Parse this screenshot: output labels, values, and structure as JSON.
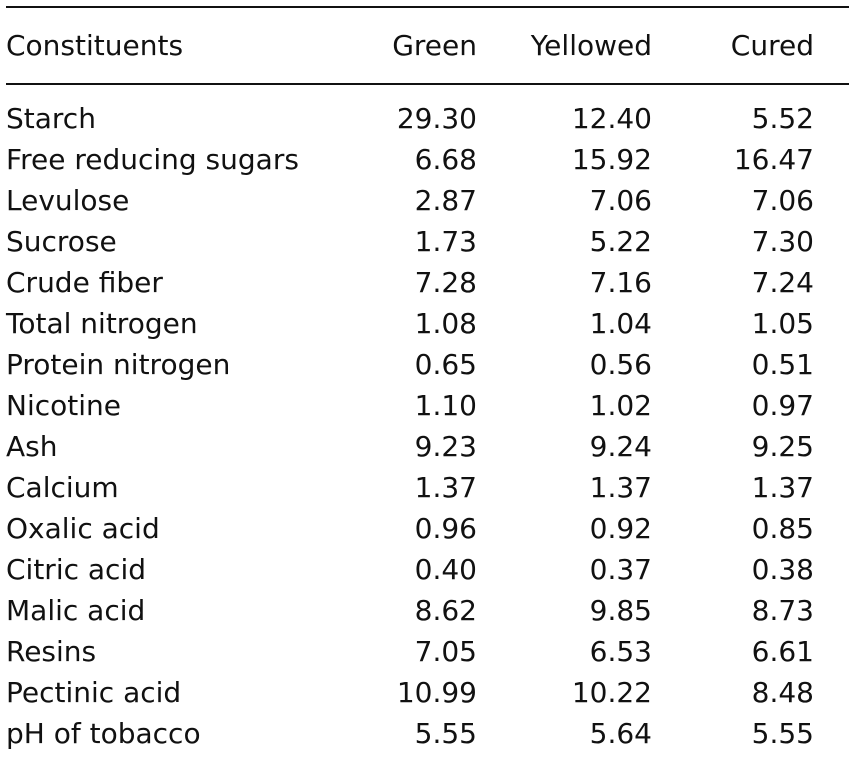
{
  "table": {
    "headers": [
      "Constituents",
      "Green",
      "Yellowed",
      "Cured"
    ],
    "rows": [
      [
        "Starch",
        "29.30",
        "12.40",
        "5.52"
      ],
      [
        "Free reducing sugars",
        "6.68",
        "15.92",
        "16.47"
      ],
      [
        "Levulose",
        "2.87",
        "7.06",
        "7.06"
      ],
      [
        "Sucrose",
        "1.73",
        "5.22",
        "7.30"
      ],
      [
        "Crude fiber",
        "7.28",
        "7.16",
        "7.24"
      ],
      [
        "Total nitrogen",
        "1.08",
        "1.04",
        "1.05"
      ],
      [
        "Protein nitrogen",
        "0.65",
        "0.56",
        "0.51"
      ],
      [
        "Nicotine",
        "1.10",
        "1.02",
        "0.97"
      ],
      [
        "Ash",
        "9.23",
        "9.24",
        "9.25"
      ],
      [
        "Calcium",
        "1.37",
        "1.37",
        "1.37"
      ],
      [
        "Oxalic acid",
        "0.96",
        "0.92",
        "0.85"
      ],
      [
        "Citric acid",
        "0.40",
        "0.37",
        "0.38"
      ],
      [
        "Malic acid",
        "8.62",
        "9.85",
        "8.73"
      ],
      [
        "Resins",
        "7.05",
        "6.53",
        "6.61"
      ],
      [
        "Pectinic acid",
        "10.99",
        "10.22",
        "8.48"
      ],
      [
        "pH of tobacco",
        "5.55",
        "5.64",
        "5.55"
      ]
    ]
  }
}
